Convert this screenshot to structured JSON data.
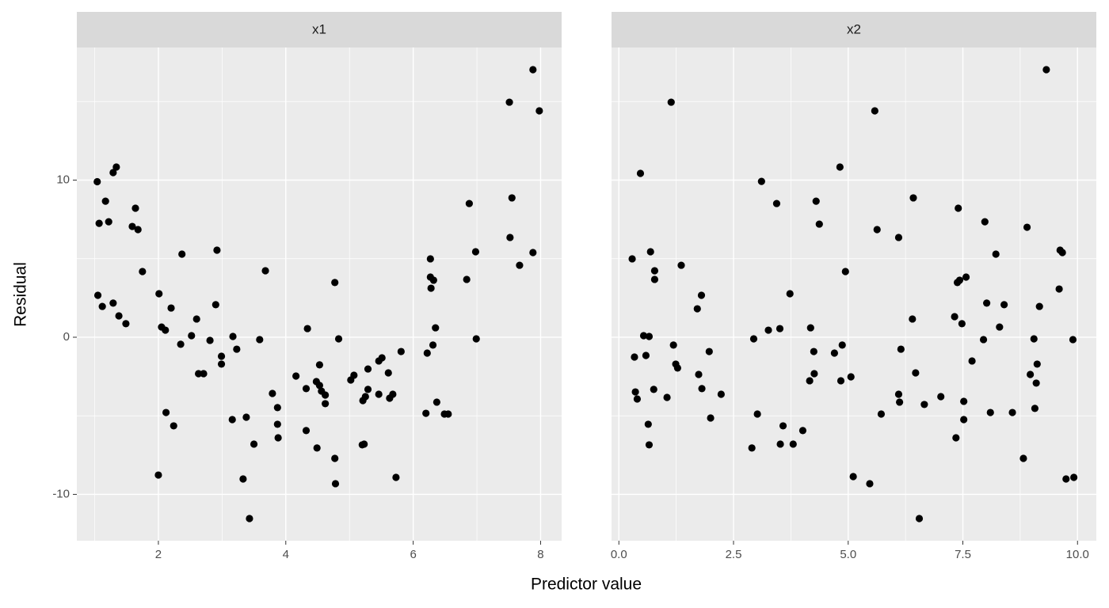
{
  "chart_data": [
    {
      "type": "scatter",
      "title": "x1",
      "color": "#000000",
      "grid": true,
      "xlim": [
        0.72,
        8.33
      ],
      "ylim": [
        -12.95,
        18.44
      ],
      "xticks": [
        2,
        4,
        6,
        8
      ],
      "minor_xticks": [
        1,
        3,
        5,
        7
      ],
      "yticks": [
        -10,
        0,
        10
      ],
      "minor_yticks": [
        -5,
        5,
        15
      ],
      "x": [
        1.04,
        1.07,
        1.17,
        1.22,
        1.29,
        1.34,
        1.05,
        1.12,
        1.29,
        1.38,
        1.49,
        1.59,
        1.64,
        1.68,
        1.75,
        2.0,
        2.01,
        2.05,
        2.11,
        2.12,
        2.2,
        2.24,
        2.35,
        2.37,
        2.52,
        2.6,
        2.63,
        2.71,
        2.81,
        2.9,
        2.92,
        2.99,
        2.99,
        3.16,
        3.17,
        3.23,
        3.33,
        3.38,
        3.43,
        3.5,
        3.59,
        3.68,
        3.79,
        3.87,
        3.87,
        3.88,
        4.16,
        4.32,
        4.32,
        4.34,
        4.48,
        4.49,
        4.53,
        4.53,
        4.56,
        4.62,
        4.62,
        4.77,
        4.77,
        4.78,
        4.83,
        5.02,
        5.07,
        5.2,
        5.21,
        5.25,
        5.23,
        5.29,
        5.29,
        5.46,
        5.46,
        5.51,
        5.61,
        5.63,
        5.68,
        5.73,
        5.81,
        6.2,
        6.22,
        6.27,
        6.27,
        6.28,
        6.31,
        6.32,
        6.35,
        6.37,
        6.49,
        6.55,
        6.84,
        6.88,
        6.98,
        6.99,
        7.51,
        7.52,
        7.55,
        7.67,
        7.88,
        7.88,
        7.98
      ],
      "y": [
        9.9,
        7.25,
        8.66,
        7.35,
        10.48,
        10.83,
        2.67,
        1.96,
        2.17,
        1.36,
        0.86,
        7.05,
        8.21,
        6.85,
        4.18,
        -8.77,
        2.77,
        0.65,
        0.45,
        -4.79,
        1.86,
        -5.64,
        -0.45,
        5.29,
        0.1,
        1.16,
        -2.32,
        -2.32,
        -0.2,
        2.07,
        5.54,
        -1.21,
        -1.71,
        -5.24,
        0.05,
        -0.76,
        -9.02,
        -5.09,
        -11.54,
        -6.8,
        -0.15,
        4.23,
        -3.58,
        -4.48,
        -5.54,
        -6.4,
        -2.47,
        -3.27,
        -5.94,
        0.55,
        -2.82,
        -7.05,
        -1.76,
        -3.07,
        -3.43,
        -3.68,
        -4.23,
        -7.71,
        3.48,
        -9.32,
        -0.1,
        -2.72,
        -2.42,
        -6.85,
        -4.03,
        -3.78,
        -6.8,
        -2.02,
        -3.32,
        -1.51,
        -3.63,
        -1.31,
        -2.27,
        -3.88,
        -3.63,
        -8.92,
        -0.91,
        -4.84,
        -1.01,
        4.99,
        3.83,
        3.12,
        -0.5,
        3.63,
        0.6,
        -4.13,
        -4.89,
        -4.89,
        3.68,
        8.51,
        5.44,
        -0.1,
        14.96,
        6.35,
        8.87,
        4.58,
        5.39,
        17.03,
        14.41
      ]
    },
    {
      "type": "scatter",
      "title": "x2",
      "color": "#000000",
      "grid": true,
      "xlim": [
        -0.16,
        10.41
      ],
      "ylim": [
        -12.95,
        18.44
      ],
      "xticks": [
        {
          "value": 0,
          "label": "0.0"
        },
        2.5,
        {
          "value": 5,
          "label": "5.0"
        },
        7.5,
        {
          "value": 10,
          "label": "10.0"
        }
      ],
      "minor_xticks": [
        1.25,
        3.75,
        6.25,
        8.75
      ],
      "yticks": [
        -10,
        0,
        10
      ],
      "minor_yticks": [
        -5,
        5,
        15
      ],
      "x": [
        0.29,
        0.34,
        0.36,
        0.4,
        0.47,
        0.54,
        0.59,
        0.66,
        0.64,
        0.66,
        0.69,
        0.76,
        0.78,
        0.78,
        1.05,
        1.14,
        1.19,
        1.24,
        1.28,
        1.36,
        1.71,
        1.74,
        1.8,
        1.81,
        1.97,
        2.0,
        2.23,
        2.9,
        2.94,
        3.02,
        3.11,
        3.26,
        3.44,
        3.51,
        3.52,
        3.58,
        3.73,
        3.8,
        4.01,
        4.16,
        4.18,
        4.25,
        4.26,
        4.3,
        4.37,
        4.7,
        4.82,
        4.84,
        4.87,
        4.94,
        5.06,
        5.11,
        5.47,
        5.58,
        5.63,
        5.72,
        6.1,
        6.12,
        6.15,
        6.1,
        6.4,
        6.42,
        6.47,
        6.55,
        6.66,
        7.02,
        7.32,
        7.35,
        7.38,
        7.4,
        7.43,
        7.48,
        7.52,
        7.52,
        7.57,
        7.7,
        7.95,
        7.98,
        8.02,
        8.1,
        8.22,
        8.3,
        8.4,
        8.58,
        8.82,
        8.9,
        8.97,
        9.05,
        9.07,
        9.1,
        9.12,
        9.17,
        9.32,
        9.6,
        9.62,
        9.67,
        9.75,
        9.9,
        9.92
      ],
      "y": [
        4.99,
        -1.26,
        -3.48,
        -3.93,
        10.43,
        0.1,
        -1.16,
        0.05,
        -5.54,
        -6.85,
        5.44,
        -3.32,
        4.23,
        3.68,
        -3.83,
        14.96,
        -0.5,
        -1.71,
        -1.96,
        4.58,
        1.81,
        -2.37,
        2.67,
        -3.27,
        -0.91,
        -5.14,
        -3.63,
        -7.05,
        -0.1,
        -4.89,
        9.92,
        0.45,
        8.51,
        0.55,
        -6.8,
        -5.64,
        2.77,
        -6.8,
        -5.94,
        -2.77,
        0.6,
        -0.91,
        -2.32,
        8.66,
        7.2,
        -1.01,
        10.83,
        -2.77,
        -0.5,
        4.18,
        -2.52,
        -8.87,
        -9.32,
        14.41,
        6.85,
        -4.89,
        -3.63,
        -4.13,
        -0.76,
        6.35,
        1.16,
        8.87,
        -2.27,
        -11.54,
        -4.28,
        -3.78,
        1.31,
        -6.4,
        3.48,
        8.21,
        3.63,
        0.86,
        -4.08,
        -5.24,
        3.83,
        -1.51,
        -0.15,
        7.35,
        2.17,
        -4.79,
        5.29,
        0.65,
        2.07,
        -4.79,
        -7.71,
        7.0,
        -2.37,
        -0.1,
        -4.53,
        -2.92,
        -1.71,
        1.96,
        17.03,
        3.07,
        5.54,
        5.39,
        -9.02,
        -0.15,
        -8.92
      ]
    }
  ],
  "x_label": "Predictor value",
  "y_label": "Residual"
}
